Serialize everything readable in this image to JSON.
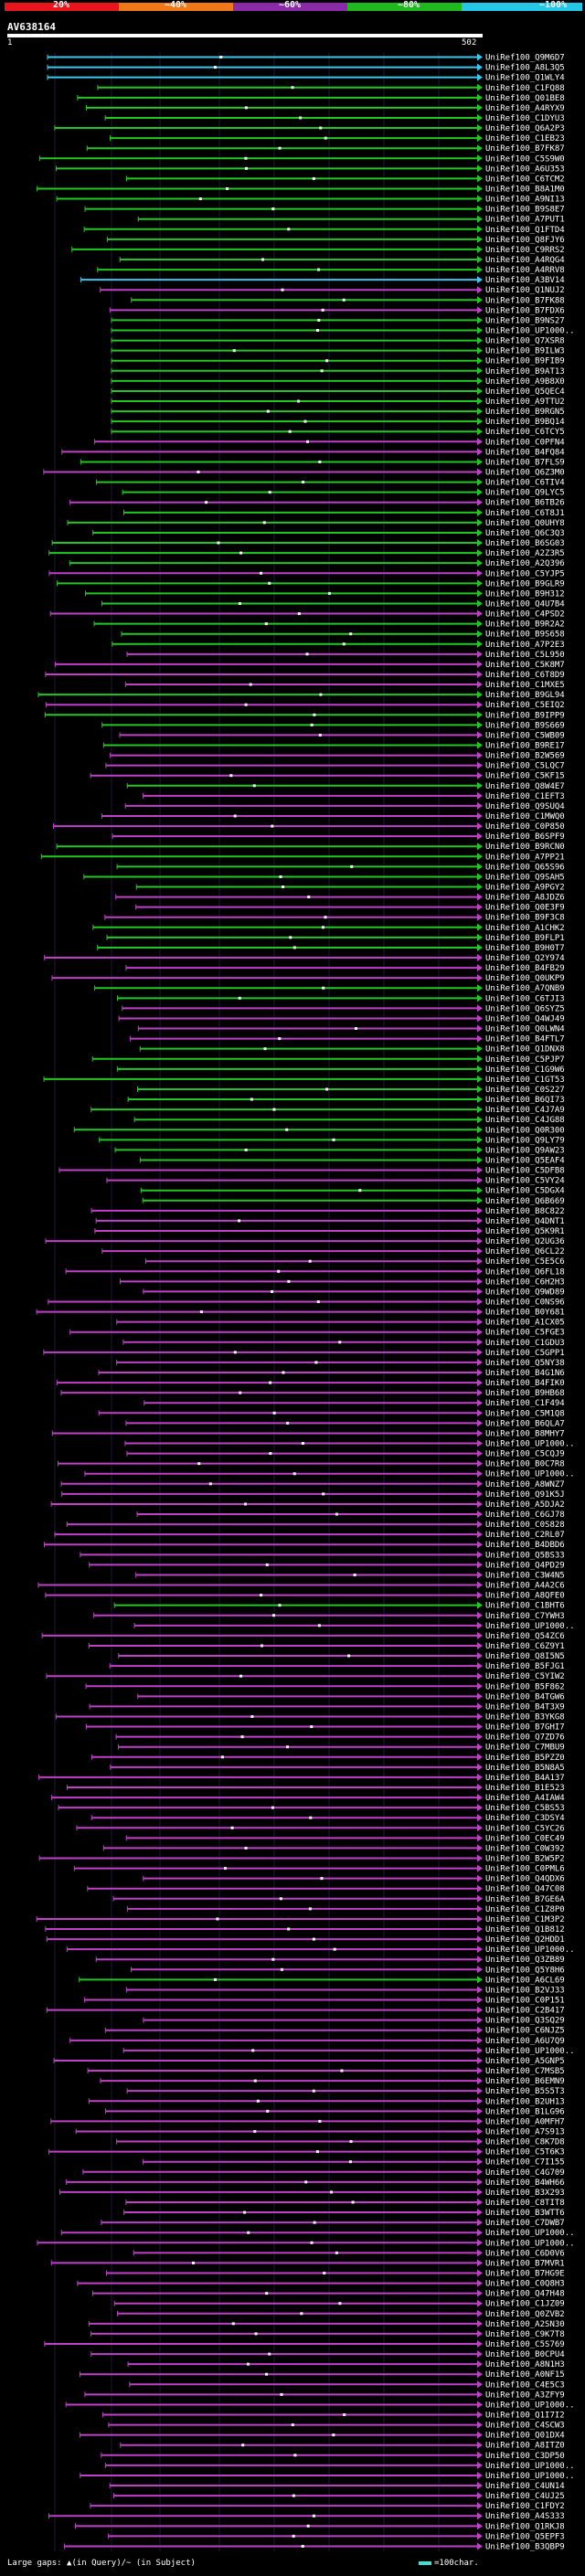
{
  "header": {
    "scale_labels": [
      "20%",
      "~40%",
      "~60%",
      "~80%",
      "~100%"
    ],
    "scale_colors": [
      "#e8161c",
      "#f07818",
      "#8a2aa8",
      "#1fb81f",
      "#24c8e6"
    ],
    "query_id": "AV638164",
    "ruler_start": "1",
    "ruler_end": "502"
  },
  "colors": {
    "cyan": "#39c9f0",
    "green": "#22c822",
    "magenta": "#c040c8",
    "gap": "#ffffff"
  },
  "hits": [
    {
      "label": "UniRef100_Q9M6D7",
      "color": "cyan"
    },
    {
      "label": "UniRef100_A8L3Q5",
      "color": "cyan"
    },
    {
      "label": "UniRef100_Q1WLY4",
      "color": "cyan"
    },
    {
      "label": "UniRef100_C1FQ88",
      "color": "green"
    },
    {
      "label": "UniRef100_Q01BE8",
      "color": "green"
    },
    {
      "label": "UniRef100_A4RYX9",
      "color": "green"
    },
    {
      "label": "UniRef100_C1DYU3",
      "color": "green"
    },
    {
      "label": "UniRef100_Q6A2P3",
      "color": "green"
    },
    {
      "label": "UniRef100_C1EB23",
      "color": "green"
    },
    {
      "label": "UniRef100_B7FK87",
      "color": "green"
    },
    {
      "label": "UniRef100_C5S9W0",
      "color": "green"
    },
    {
      "label": "UniRef100_A6U353",
      "color": "green"
    },
    {
      "label": "UniRef100_C6TCM2",
      "color": "green"
    },
    {
      "label": "UniRef100_B8A1M0",
      "color": "green"
    },
    {
      "label": "UniRef100_A9NI13",
      "color": "green"
    },
    {
      "label": "UniRef100_B9S8E7",
      "color": "green"
    },
    {
      "label": "UniRef100_A7PUT1",
      "color": "green"
    },
    {
      "label": "UniRef100_Q1FTD4",
      "color": "green"
    },
    {
      "label": "UniRef100_Q8FJY6",
      "color": "green"
    },
    {
      "label": "UniRef100_C9RRS2",
      "color": "green"
    },
    {
      "label": "UniRef100_A4RQG4",
      "color": "green"
    },
    {
      "label": "UniRef100_A4RRV8",
      "color": "green"
    },
    {
      "label": "UniRef100_A3BV14",
      "color": "cyan"
    },
    {
      "label": "UniRef100_Q1NUJ2",
      "color": "magenta"
    },
    {
      "label": "UniRef100_B7FK88",
      "color": "green"
    },
    {
      "label": "UniRef100_B7FDX6",
      "color": "magenta"
    },
    {
      "label": "UniRef100_B9NS27",
      "color": "green"
    },
    {
      "label": "UniRef100_UP1000..",
      "color": "green"
    },
    {
      "label": "UniRef100_Q7XSR8",
      "color": "green"
    },
    {
      "label": "UniRef100_B9ILW3",
      "color": "green"
    },
    {
      "label": "UniRef100_B9FIB9",
      "color": "green"
    },
    {
      "label": "UniRef100_B9AT13",
      "color": "green"
    },
    {
      "label": "UniRef100_A9B8X0",
      "color": "green"
    },
    {
      "label": "UniRef100_Q5QEC4",
      "color": "green"
    },
    {
      "label": "UniRef100_A9TTU2",
      "color": "green"
    },
    {
      "label": "UniRef100_B9RGN5",
      "color": "green"
    },
    {
      "label": "UniRef100_B9BQ14",
      "color": "green"
    },
    {
      "label": "UniRef100_C6TCY5",
      "color": "green"
    },
    {
      "label": "UniRef100_C0PFN4",
      "color": "magenta"
    },
    {
      "label": "UniRef100_B4FQ84",
      "color": "magenta"
    },
    {
      "label": "UniRef100_B7FLS9",
      "color": "green"
    },
    {
      "label": "UniRef100_Q6Z3M0",
      "color": "magenta"
    },
    {
      "label": "UniRef100_C6TIV4",
      "color": "green"
    },
    {
      "label": "UniRef100_Q9LYC5",
      "color": "green"
    },
    {
      "label": "UniRef100_B6TB26",
      "color": "magenta"
    },
    {
      "label": "UniRef100_C6T8J1",
      "color": "green"
    },
    {
      "label": "UniRef100_Q0UHY8",
      "color": "green"
    },
    {
      "label": "UniRef100_Q6C3Q3",
      "color": "green"
    },
    {
      "label": "UniRef100_B6SG03",
      "color": "green"
    },
    {
      "label": "UniRef100_A2Z3R5",
      "color": "green"
    },
    {
      "label": "UniRef100_A2Q396",
      "color": "green"
    },
    {
      "label": "UniRef100_C5YJP5",
      "color": "magenta"
    },
    {
      "label": "UniRef100_B9GLR9",
      "color": "green"
    },
    {
      "label": "UniRef100_B9H312",
      "color": "green"
    },
    {
      "label": "UniRef100_Q4U7B4",
      "color": "green"
    },
    {
      "label": "UniRef100_C4PSD2",
      "color": "magenta"
    },
    {
      "label": "UniRef100_B9R2A2",
      "color": "green"
    },
    {
      "label": "UniRef100_B9S658",
      "color": "green"
    },
    {
      "label": "UniRef100_A7P2E3",
      "color": "green"
    },
    {
      "label": "UniRef100_C5L950",
      "color": "magenta"
    },
    {
      "label": "UniRef100_C5K8M7",
      "color": "magenta"
    },
    {
      "label": "UniRef100_C6T8D9",
      "color": "magenta"
    },
    {
      "label": "UniRef100_C1MXE5",
      "color": "magenta"
    },
    {
      "label": "UniRef100_B9GL94",
      "color": "green"
    },
    {
      "label": "UniRef100_C5EIQ2",
      "color": "magenta"
    },
    {
      "label": "UniRef100_B9IPP9",
      "color": "green"
    },
    {
      "label": "UniRef100_B9S669",
      "color": "green"
    },
    {
      "label": "UniRef100_C5WB09",
      "color": "magenta"
    },
    {
      "label": "UniRef100_B9RE17",
      "color": "green"
    },
    {
      "label": "UniRef100_B2W569",
      "color": "magenta"
    },
    {
      "label": "UniRef100_C5LQC7",
      "color": "magenta"
    },
    {
      "label": "UniRef100_C5KF15",
      "color": "magenta"
    },
    {
      "label": "UniRef100_Q8W4E7",
      "color": "green"
    },
    {
      "label": "UniRef100_C1EFT3",
      "color": "magenta"
    },
    {
      "label": "UniRef100_Q9SUQ4",
      "color": "magenta"
    },
    {
      "label": "UniRef100_C1MWQ0",
      "color": "magenta"
    },
    {
      "label": "UniRef100_C0P850",
      "color": "magenta"
    },
    {
      "label": "UniRef100_B6SPF9",
      "color": "magenta"
    },
    {
      "label": "UniRef100_B9RCN0",
      "color": "green"
    },
    {
      "label": "UniRef100_A7PP21",
      "color": "green"
    },
    {
      "label": "UniRef100_Q65S96",
      "color": "green"
    },
    {
      "label": "UniRef100_Q9SAH5",
      "color": "green"
    },
    {
      "label": "UniRef100_A9PGY2",
      "color": "green"
    },
    {
      "label": "UniRef100_A8JDZ6",
      "color": "magenta"
    },
    {
      "label": "UniRef100_Q0E3F9",
      "color": "magenta"
    },
    {
      "label": "UniRef100_B9F3C8",
      "color": "magenta"
    },
    {
      "label": "UniRef100_A1CHK2",
      "color": "green"
    },
    {
      "label": "UniRef100_B9FLP1",
      "color": "green"
    },
    {
      "label": "UniRef100_B9H0T7",
      "color": "green"
    },
    {
      "label": "UniRef100_Q2Y974",
      "color": "magenta"
    },
    {
      "label": "UniRef100_B4FB29",
      "color": "magenta"
    },
    {
      "label": "UniRef100_Q0UKP9",
      "color": "magenta"
    },
    {
      "label": "UniRef100_A7QNB9",
      "color": "green"
    },
    {
      "label": "UniRef100_C6TJI3",
      "color": "green"
    },
    {
      "label": "UniRef100_Q6SYZ5",
      "color": "magenta"
    },
    {
      "label": "UniRef100_Q4WJ49",
      "color": "magenta"
    },
    {
      "label": "UniRef100_Q0LWN4",
      "color": "magenta"
    },
    {
      "label": "UniRef100_B4FTL7",
      "color": "magenta"
    },
    {
      "label": "UniRef100_Q1DNX8",
      "color": "green"
    },
    {
      "label": "UniRef100_C5PJP7",
      "color": "green"
    },
    {
      "label": "UniRef100_C1G9W6",
      "color": "green"
    },
    {
      "label": "UniRef100_C1GT53",
      "color": "green"
    },
    {
      "label": "UniRef100_C0S227",
      "color": "green"
    },
    {
      "label": "UniRef100_B6QI73",
      "color": "green"
    },
    {
      "label": "UniRef100_C4J7A9",
      "color": "green"
    },
    {
      "label": "UniRef100_C4JG88",
      "color": "green"
    },
    {
      "label": "UniRef100_Q0R300",
      "color": "green"
    },
    {
      "label": "UniRef100_Q9LY79",
      "color": "green"
    },
    {
      "label": "UniRef100_Q9AW23",
      "color": "green"
    },
    {
      "label": "UniRef100_Q5EAF4",
      "color": "green"
    },
    {
      "label": "UniRef100_C5DFB8",
      "color": "magenta"
    },
    {
      "label": "UniRef100_C5VY24",
      "color": "magenta"
    },
    {
      "label": "UniRef100_C5DGX4",
      "color": "green"
    },
    {
      "label": "UniRef100_Q6B669",
      "color": "green"
    },
    {
      "label": "UniRef100_B8C822",
      "color": "magenta"
    },
    {
      "label": "UniRef100_Q4DNT1",
      "color": "magenta"
    },
    {
      "label": "UniRef100_Q5K9R1",
      "color": "magenta"
    },
    {
      "label": "UniRef100_Q2UG36",
      "color": "magenta"
    },
    {
      "label": "UniRef100_Q6CL22",
      "color": "magenta"
    },
    {
      "label": "UniRef100_C5E5C6",
      "color": "magenta"
    },
    {
      "label": "UniRef100_Q6FL18",
      "color": "magenta"
    },
    {
      "label": "UniRef100_C6H2H3",
      "color": "magenta"
    },
    {
      "label": "UniRef100_Q9WD89",
      "color": "magenta"
    },
    {
      "label": "UniRef100_C0NS96",
      "color": "magenta"
    },
    {
      "label": "UniRef100_B0Y681",
      "color": "magenta"
    },
    {
      "label": "UniRef100_A1CX05",
      "color": "magenta"
    },
    {
      "label": "UniRef100_C5FGE3",
      "color": "magenta"
    },
    {
      "label": "UniRef100_C1GDU3",
      "color": "magenta"
    },
    {
      "label": "UniRef100_C5GPP1",
      "color": "magenta"
    },
    {
      "label": "UniRef100_Q5NY38",
      "color": "magenta"
    },
    {
      "label": "UniRef100_B4G1N6",
      "color": "magenta"
    },
    {
      "label": "UniRef100_B4FIK0",
      "color": "magenta"
    },
    {
      "label": "UniRef100_B9HB68",
      "color": "magenta"
    },
    {
      "label": "UniRef100_C1F494",
      "color": "magenta"
    },
    {
      "label": "UniRef100_C5M1Q8",
      "color": "magenta"
    },
    {
      "label": "UniRef100_B6QLA7",
      "color": "magenta"
    },
    {
      "label": "UniRef100_B8MHY7",
      "color": "magenta"
    },
    {
      "label": "UniRef100_UP1000..",
      "color": "magenta"
    },
    {
      "label": "UniRef100_C5CQJ9",
      "color": "magenta"
    },
    {
      "label": "UniRef100_B0C7R8",
      "color": "magenta"
    },
    {
      "label": "UniRef100_UP1000..",
      "color": "magenta"
    },
    {
      "label": "UniRef100_A8WNZ7",
      "color": "magenta"
    },
    {
      "label": "UniRef100_Q91K5J",
      "color": "magenta"
    },
    {
      "label": "UniRef100_A5DJA2",
      "color": "magenta"
    },
    {
      "label": "UniRef100_C6GJ78",
      "color": "magenta"
    },
    {
      "label": "UniRef100_C0S828",
      "color": "magenta"
    },
    {
      "label": "UniRef100_C2RL07",
      "color": "magenta"
    },
    {
      "label": "UniRef100_B4DBD6",
      "color": "magenta"
    },
    {
      "label": "UniRef100_Q5BS33",
      "color": "magenta"
    },
    {
      "label": "UniRef100_Q4PD29",
      "color": "magenta"
    },
    {
      "label": "UniRef100_C3W4N5",
      "color": "magenta"
    },
    {
      "label": "UniRef100_A4A2C6",
      "color": "magenta"
    },
    {
      "label": "UniRef100_A8QFE0",
      "color": "magenta"
    },
    {
      "label": "UniRef100_C1BHT6",
      "color": "green"
    },
    {
      "label": "UniRef100_C7YWH3",
      "color": "magenta"
    },
    {
      "label": "UniRef100_UP1000..",
      "color": "magenta"
    },
    {
      "label": "UniRef100_Q54ZC6",
      "color": "magenta"
    },
    {
      "label": "UniRef100_C6Z9Y1",
      "color": "magenta"
    },
    {
      "label": "UniRef100_Q8I5N5",
      "color": "magenta"
    },
    {
      "label": "UniRef100_B5FJG1",
      "color": "magenta"
    },
    {
      "label": "UniRef100_C5YIW2",
      "color": "magenta"
    },
    {
      "label": "UniRef100_B5F862",
      "color": "magenta"
    },
    {
      "label": "UniRef100_B4TGW6",
      "color": "magenta"
    },
    {
      "label": "UniRef100_B4T3X9",
      "color": "magenta"
    },
    {
      "label": "UniRef100_B3YKG8",
      "color": "magenta"
    },
    {
      "label": "UniRef100_B7GHI7",
      "color": "magenta"
    },
    {
      "label": "UniRef100_Q7ZD76",
      "color": "magenta"
    },
    {
      "label": "UniRef100_C7MBU9",
      "color": "magenta"
    },
    {
      "label": "UniRef100_B5PZZ0",
      "color": "magenta"
    },
    {
      "label": "UniRef100_B5N8A5",
      "color": "magenta"
    },
    {
      "label": "UniRef100_B4A137",
      "color": "magenta"
    },
    {
      "label": "UniRef100_B1E523",
      "color": "magenta"
    },
    {
      "label": "UniRef100_A4IAW4",
      "color": "magenta"
    },
    {
      "label": "UniRef100_C5BS53",
      "color": "magenta"
    },
    {
      "label": "UniRef100_C3DSY4",
      "color": "magenta"
    },
    {
      "label": "UniRef100_C5YC26",
      "color": "magenta"
    },
    {
      "label": "UniRef100_C0EC49",
      "color": "magenta"
    },
    {
      "label": "UniRef100_C0W392",
      "color": "magenta"
    },
    {
      "label": "UniRef100_B2W5P2",
      "color": "magenta"
    },
    {
      "label": "UniRef100_C0PML6",
      "color": "magenta"
    },
    {
      "label": "UniRef100_Q4QDX6",
      "color": "magenta"
    },
    {
      "label": "UniRef100_Q47C08",
      "color": "magenta"
    },
    {
      "label": "UniRef100_B7GE6A",
      "color": "magenta"
    },
    {
      "label": "UniRef100_C1Z8P0",
      "color": "magenta"
    },
    {
      "label": "UniRef100_C1M3P2",
      "color": "magenta"
    },
    {
      "label": "UniRef100_Q1B812",
      "color": "magenta"
    },
    {
      "label": "UniRef100_Q2HDD1",
      "color": "magenta"
    },
    {
      "label": "UniRef100_UP1000..",
      "color": "magenta"
    },
    {
      "label": "UniRef100_Q3ZB89",
      "color": "magenta"
    },
    {
      "label": "UniRef100_Q5Y8H6",
      "color": "magenta"
    },
    {
      "label": "UniRef100_A6CL69",
      "color": "green"
    },
    {
      "label": "UniRef100_B2VJ33",
      "color": "magenta"
    },
    {
      "label": "UniRef100_C0P151",
      "color": "magenta"
    },
    {
      "label": "UniRef100_C2B417",
      "color": "magenta"
    },
    {
      "label": "UniRef100_Q3SQ29",
      "color": "magenta"
    },
    {
      "label": "UniRef100_C6NJZ5",
      "color": "magenta"
    },
    {
      "label": "UniRef100_A6U7Q9",
      "color": "magenta"
    },
    {
      "label": "UniRef100_UP1000..",
      "color": "magenta"
    },
    {
      "label": "UniRef100_A5GNP5",
      "color": "magenta"
    },
    {
      "label": "UniRef100_C7MSB5",
      "color": "magenta"
    },
    {
      "label": "UniRef100_B6EMN9",
      "color": "magenta"
    },
    {
      "label": "UniRef100_B5S5T3",
      "color": "magenta"
    },
    {
      "label": "UniRef100_B2UH13",
      "color": "magenta"
    },
    {
      "label": "UniRef100_B1LG96",
      "color": "magenta"
    },
    {
      "label": "UniRef100_A0MFH7",
      "color": "magenta"
    },
    {
      "label": "UniRef100_A7S913",
      "color": "magenta"
    },
    {
      "label": "UniRef100_C8K7D8",
      "color": "magenta"
    },
    {
      "label": "UniRef100_C5T6K3",
      "color": "magenta"
    },
    {
      "label": "UniRef100_C7I155",
      "color": "magenta"
    },
    {
      "label": "UniRef100_C4G709",
      "color": "magenta"
    },
    {
      "label": "UniRef100_B4WH66",
      "color": "magenta"
    },
    {
      "label": "UniRef100_B3X293",
      "color": "magenta"
    },
    {
      "label": "UniRef100_C8TIT8",
      "color": "magenta"
    },
    {
      "label": "UniRef100_B3WTT6",
      "color": "magenta"
    },
    {
      "label": "UniRef100_C7DWB7",
      "color": "magenta"
    },
    {
      "label": "UniRef100_UP1000..",
      "color": "magenta"
    },
    {
      "label": "UniRef100_UP1000..",
      "color": "magenta"
    },
    {
      "label": "UniRef100_C6D0V6",
      "color": "magenta"
    },
    {
      "label": "UniRef100_B7MVR1",
      "color": "magenta"
    },
    {
      "label": "UniRef100_B7HG9E",
      "color": "magenta"
    },
    {
      "label": "UniRef100_C0Q8H3",
      "color": "magenta"
    },
    {
      "label": "UniRef100_Q47H48",
      "color": "magenta"
    },
    {
      "label": "UniRef100_C1JZ09",
      "color": "magenta"
    },
    {
      "label": "UniRef100_Q0ZVB2",
      "color": "magenta"
    },
    {
      "label": "UniRef100_A2SN30",
      "color": "magenta"
    },
    {
      "label": "UniRef100_C9K7T8",
      "color": "magenta"
    },
    {
      "label": "UniRef100_C5S769",
      "color": "magenta"
    },
    {
      "label": "UniRef100_B0CPU4",
      "color": "magenta"
    },
    {
      "label": "UniRef100_A8N1H3",
      "color": "magenta"
    },
    {
      "label": "UniRef100_A0NF15",
      "color": "magenta"
    },
    {
      "label": "UniRef100_C4E5C3",
      "color": "magenta"
    },
    {
      "label": "UniRef100_A3ZFY9",
      "color": "magenta"
    },
    {
      "label": "UniRef100_UP1000..",
      "color": "magenta"
    },
    {
      "label": "UniRef100_Q1I7I2",
      "color": "magenta"
    },
    {
      "label": "UniRef100_C4SCW3",
      "color": "magenta"
    },
    {
      "label": "UniRef100_Q01DX4",
      "color": "magenta"
    },
    {
      "label": "UniRef100_A8ITZ0",
      "color": "magenta"
    },
    {
      "label": "UniRef100_C3DP50",
      "color": "magenta"
    },
    {
      "label": "UniRef100_UP1000..",
      "color": "magenta"
    },
    {
      "label": "UniRef100_UP1000..",
      "color": "magenta"
    },
    {
      "label": "UniRef100_C4UN14",
      "color": "magenta"
    },
    {
      "label": "UniRef100_C4UJ25",
      "color": "magenta"
    },
    {
      "label": "UniRef100_C1FDY2",
      "color": "magenta"
    },
    {
      "label": "UniRef100_A4S333",
      "color": "magenta"
    },
    {
      "label": "UniRef100_Q1RKJ8",
      "color": "magenta"
    },
    {
      "label": "UniRef100_Q5EPF3",
      "color": "magenta"
    },
    {
      "label": "UniRef100_B3QBP9",
      "color": "magenta"
    }
  ],
  "legend": {
    "large_gaps": "Large gaps: ▲(in Query)/~ (in Subject)",
    "scale_note": "=100char."
  }
}
